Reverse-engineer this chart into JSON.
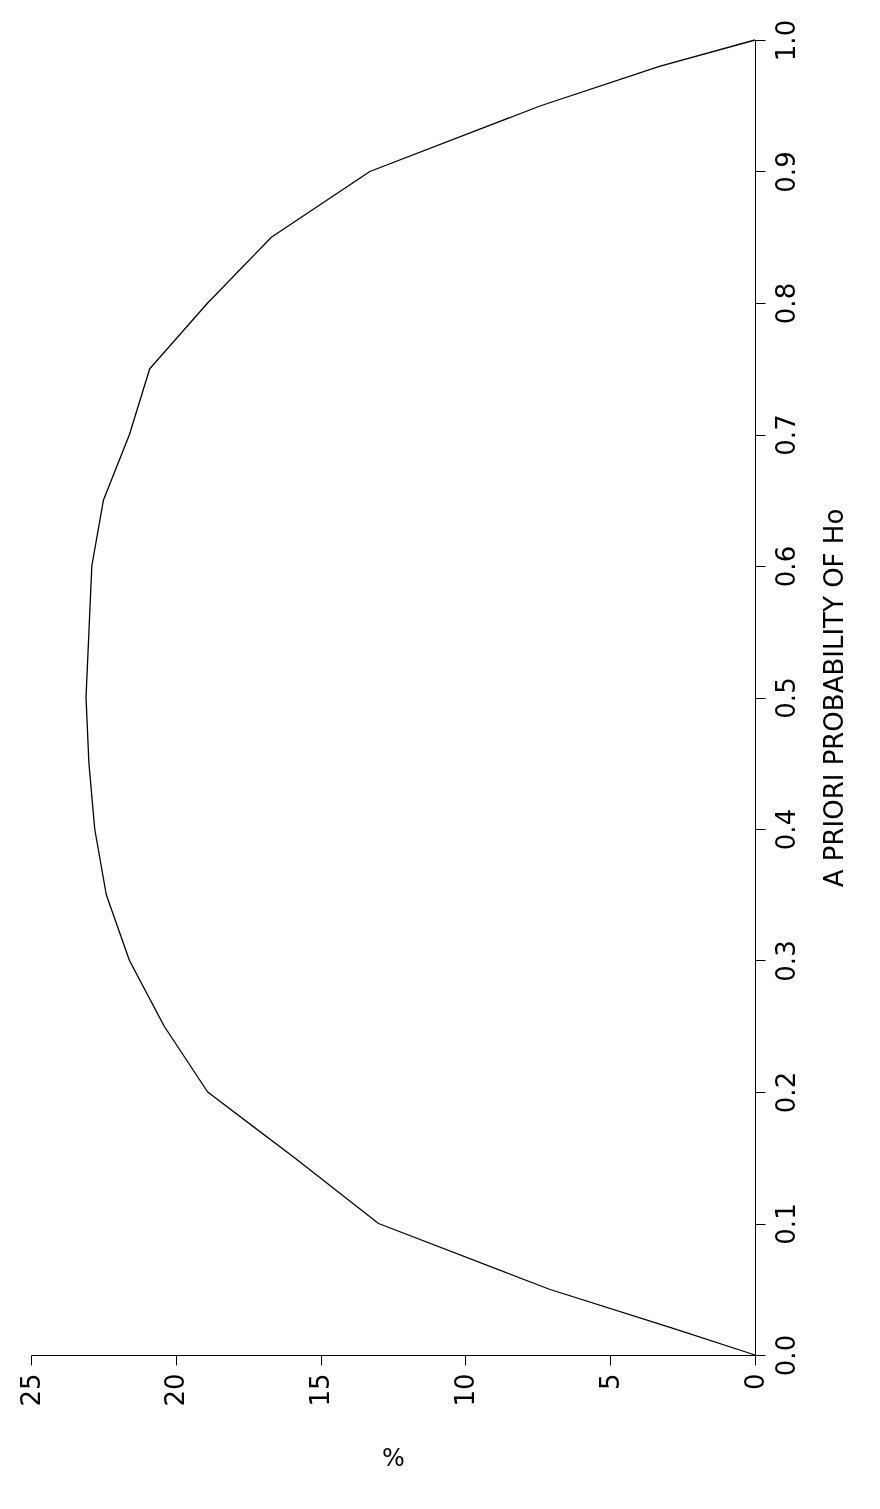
{
  "chart_data": {
    "type": "line",
    "xlabel": "%",
    "y2label": "A PRIORI PROBABILITY OF Ho",
    "series": [
      {
        "color": "#000000",
        "axis": "y2",
        "x": [
          0,
          2.8,
          7.1,
          13.0,
          15.9,
          18.9,
          20.4,
          21.6,
          22.4,
          22.8,
          23.0,
          23.1,
          23.0,
          22.9,
          22.5,
          21.6,
          20.9,
          18.9,
          16.7,
          13.3,
          7.4,
          3.3,
          0
        ],
        "values": [
          0,
          0.02,
          0.05,
          0.1,
          0.15,
          0.2,
          0.25,
          0.3,
          0.35,
          0.4,
          0.45,
          0.5,
          0.55,
          0.6,
          0.65,
          0.7,
          0.75,
          0.8,
          0.85,
          0.9,
          0.95,
          0.98,
          1.0
        ]
      }
    ],
    "xlim": [
      25,
      0
    ],
    "y2lim": [
      0,
      1
    ],
    "y2ticks": [
      {
        "value": 0,
        "label": "0.0"
      },
      {
        "value": 0.1,
        "label": "0.1"
      },
      {
        "value": 0.2,
        "label": "0.2"
      },
      {
        "value": 0.3,
        "label": "0.3"
      },
      {
        "value": 0.4,
        "label": "0.4"
      },
      {
        "value": 0.5,
        "label": "0.5"
      },
      {
        "value": 0.6,
        "label": "0.6"
      },
      {
        "value": 0.7,
        "label": "0.7"
      },
      {
        "value": 0.8,
        "label": "0.8"
      },
      {
        "value": 0.9,
        "label": "0.9"
      },
      {
        "value": 1.0,
        "label": "1.0"
      }
    ],
    "xticks": [
      25,
      20,
      15,
      10,
      5,
      0
    ],
    "grid": false,
    "marker": "none",
    "line_style": "solid"
  }
}
